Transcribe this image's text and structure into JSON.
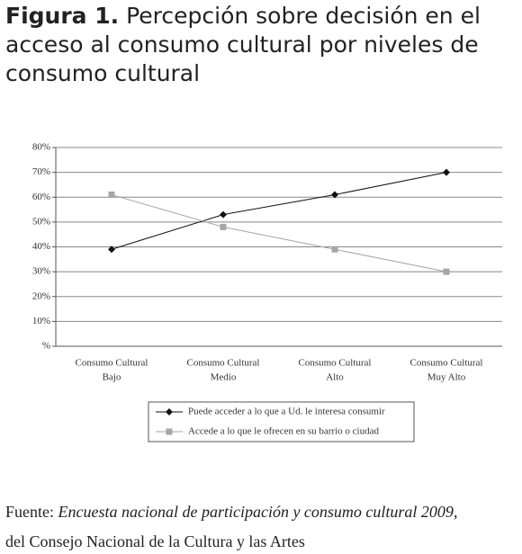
{
  "title_prefix": "Figura 1.",
  "title": "Percepción sobre decisión en el acceso al consumo cultural por niveles de consumo cultural",
  "chart_data": {
    "type": "line",
    "categories": [
      [
        "Consumo Cultural",
        "Bajo"
      ],
      [
        "Consumo Cultural",
        "Medio"
      ],
      [
        "Consumo Cultural",
        "Alto"
      ],
      [
        "Consumo Cultural",
        "Muy Alto"
      ]
    ],
    "series": [
      {
        "name": "Puede acceder a lo que a Ud. le interesa consumir",
        "color": "#111111",
        "marker": "diamond",
        "values": [
          39,
          53,
          61,
          70
        ]
      },
      {
        "name": "Accede a lo que le ofrecen en su barrio o ciudad",
        "color": "#a6a6a6",
        "marker": "square",
        "values": [
          61,
          48,
          39,
          30
        ]
      }
    ],
    "ylim": [
      0,
      80
    ],
    "yticks": [
      {
        "value": 0,
        "label": "%"
      },
      {
        "value": 10,
        "label": "10%"
      },
      {
        "value": 20,
        "label": "20%"
      },
      {
        "value": 30,
        "label": "30%"
      },
      {
        "value": 40,
        "label": "40%"
      },
      {
        "value": 50,
        "label": "50%"
      },
      {
        "value": 60,
        "label": "60%"
      },
      {
        "value": 70,
        "label": "70%"
      },
      {
        "value": 80,
        "label": "80%"
      }
    ],
    "grid": true,
    "legend": "bottom"
  },
  "source": {
    "prefix": "Fuente:",
    "italic": "Encuesta nacional de participación y consumo cultural 2009",
    "suffix": ",",
    "line2": "del Consejo Nacional de la Cultura y las Artes"
  }
}
